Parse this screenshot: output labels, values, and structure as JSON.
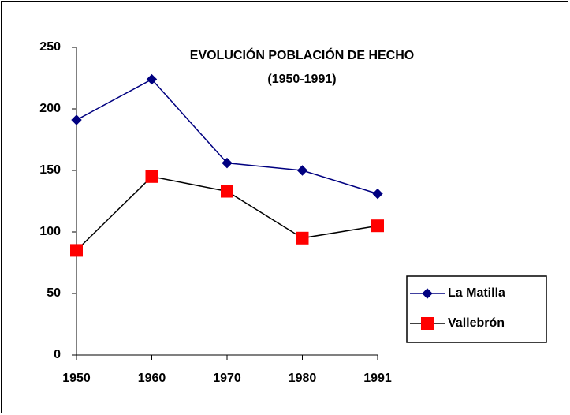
{
  "chart_data": {
    "type": "line",
    "title": "EVOLUCIÓN POBLACIÓN DE HECHO",
    "subtitle": "(1950-1991)",
    "categories": [
      "1950",
      "1960",
      "1970",
      "1980",
      "1991"
    ],
    "series": [
      {
        "name": "La Matilla",
        "color": "#000080",
        "line_color": "#000080",
        "marker": "diamond",
        "values": [
          191,
          224,
          156,
          150,
          131
        ]
      },
      {
        "name": "Vallebrón",
        "color": "#ff0000",
        "line_color": "#000000",
        "marker": "square",
        "values": [
          85,
          145,
          133,
          95,
          105
        ]
      }
    ],
    "ylim": [
      0,
      250
    ],
    "yticks": [
      0,
      50,
      100,
      150,
      200,
      250
    ],
    "grid": false,
    "legend": "right"
  }
}
